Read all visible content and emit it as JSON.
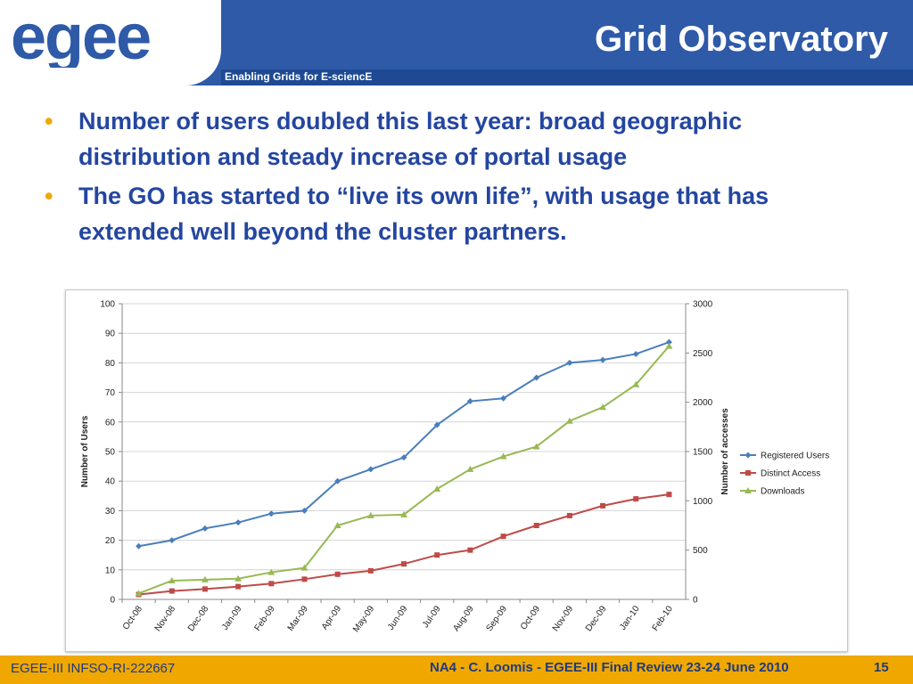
{
  "header": {
    "logo_text": "egee",
    "title": "Grid Observatory",
    "tagline": "Enabling Grids for E-sciencE"
  },
  "bullets": [
    "Number of users doubled this last year: broad geographic distribution and steady increase of portal usage",
    "The GO has started to “live its own life”, with usage that has extended well beyond the cluster partners."
  ],
  "bullet_glyph": "•",
  "chart_data": {
    "type": "line",
    "categories": [
      "Oct-08",
      "Nov-08",
      "Dec-08",
      "Jan-09",
      "Feb-09",
      "Mar-09",
      "Apr-09",
      "May-09",
      "Jun-09",
      "Jul-09",
      "Aug-09",
      "Sep-09",
      "Oct-09",
      "Nov-09",
      "Dec-09",
      "Jan-10",
      "Feb-10"
    ],
    "ylabel": "Number of Users",
    "y2label": "Number of accesses",
    "ylim": [
      0,
      100
    ],
    "yticks": [
      0,
      10,
      20,
      30,
      40,
      50,
      60,
      70,
      80,
      90,
      100
    ],
    "y2lim": [
      0,
      3000
    ],
    "y2ticks": [
      0,
      500,
      1000,
      1500,
      2000,
      2500,
      3000
    ],
    "grid": true,
    "legend_position": "right",
    "series": [
      {
        "name": "Registered Users",
        "axis": "left",
        "marker": "diamond",
        "color": "#4a7ebb",
        "values": [
          18,
          20,
          24,
          26,
          29,
          30,
          40,
          44,
          48,
          59,
          67,
          68,
          75,
          80,
          81,
          83,
          87
        ]
      },
      {
        "name": "Distinct Access",
        "axis": "right",
        "marker": "square",
        "color": "#be4b48",
        "values": [
          50,
          85,
          105,
          130,
          160,
          205,
          255,
          290,
          360,
          450,
          500,
          640,
          750,
          850,
          950,
          1020,
          1065
        ]
      },
      {
        "name": "Downloads",
        "axis": "right",
        "marker": "triangle",
        "color": "#98b954",
        "values": [
          60,
          190,
          200,
          210,
          275,
          320,
          750,
          850,
          860,
          1120,
          1320,
          1450,
          1550,
          1810,
          1950,
          2180,
          2570
        ]
      }
    ]
  },
  "footer": {
    "left": "EGEE-III INFSO-RI-222667",
    "center": "NA4 - C. Loomis - EGEE-III Final Review 23-24 June 2010",
    "page": "15"
  },
  "colors": {
    "header_blue": "#2e5aa8",
    "text_blue": "#2446a0",
    "footer_orange": "#f0a800"
  }
}
